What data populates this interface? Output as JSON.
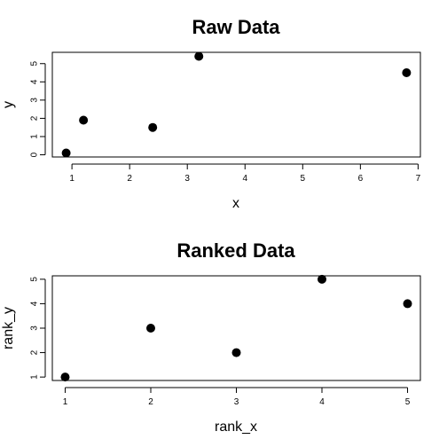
{
  "chart_data": [
    {
      "type": "scatter",
      "title": "Raw Data",
      "xlabel": "x",
      "ylabel": "y",
      "xlim": [
        0.66,
        7.04
      ],
      "ylim": [
        -0.12,
        5.62
      ],
      "xticks": [
        1,
        2,
        3,
        4,
        5,
        6,
        7
      ],
      "yticks": [
        0,
        1,
        2,
        3,
        4,
        5
      ],
      "xtick_labels": [
        "1",
        "2",
        "3",
        "4",
        "5",
        "6",
        "7"
      ],
      "ytick_labels": [
        "0",
        "1",
        "2",
        "3",
        "4",
        "5"
      ],
      "grid": false,
      "points": [
        {
          "x": 0.9,
          "y": 0.1
        },
        {
          "x": 1.2,
          "y": 1.9
        },
        {
          "x": 2.4,
          "y": 1.5
        },
        {
          "x": 3.2,
          "y": 5.4
        },
        {
          "x": 6.8,
          "y": 4.5
        }
      ]
    },
    {
      "type": "scatter",
      "title": "Ranked Data",
      "xlabel": "rank_x",
      "ylabel": "rank_y",
      "xlim": [
        0.85,
        5.15
      ],
      "ylim": [
        0.86,
        5.14
      ],
      "xticks": [
        1,
        2,
        3,
        4,
        5
      ],
      "yticks": [
        1,
        2,
        3,
        4,
        5
      ],
      "xtick_labels": [
        "1",
        "2",
        "3",
        "4",
        "5"
      ],
      "ytick_labels": [
        "1",
        "2",
        "3",
        "4",
        "5"
      ],
      "grid": false,
      "points": [
        {
          "x": 1,
          "y": 1
        },
        {
          "x": 2,
          "y": 3
        },
        {
          "x": 3,
          "y": 2
        },
        {
          "x": 4,
          "y": 5
        },
        {
          "x": 5,
          "y": 4
        }
      ]
    }
  ]
}
